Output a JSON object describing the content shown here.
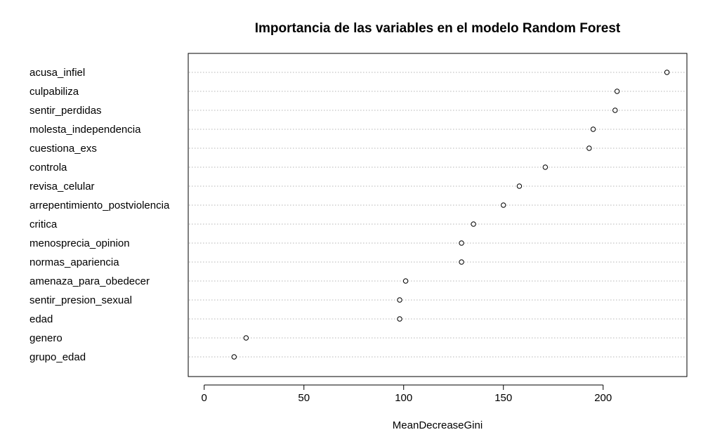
{
  "chart_data": {
    "type": "scatter",
    "title": "Importancia de las variables en el modelo Random Forest",
    "xlabel": "MeanDecreaseGini",
    "ylabel": "",
    "xlim": [
      -8,
      242
    ],
    "xticks": [
      0,
      50,
      100,
      150,
      200
    ],
    "grid": "dotted horizontal lines per variable",
    "marker": "open-circle",
    "points": [
      {
        "label": "acusa_infiel",
        "value": 232
      },
      {
        "label": "culpabiliza",
        "value": 207
      },
      {
        "label": "sentir_perdidas",
        "value": 206
      },
      {
        "label": "molesta_independencia",
        "value": 195
      },
      {
        "label": "cuestiona_exs",
        "value": 193
      },
      {
        "label": "controla",
        "value": 171
      },
      {
        "label": "revisa_celular",
        "value": 158
      },
      {
        "label": "arrepentimiento_postviolencia",
        "value": 150
      },
      {
        "label": "critica",
        "value": 135
      },
      {
        "label": "menosprecia_opinion",
        "value": 129
      },
      {
        "label": "normas_apariencia",
        "value": 129
      },
      {
        "label": "amenaza_para_obedecer",
        "value": 101
      },
      {
        "label": "sentir_presion_sexual",
        "value": 98
      },
      {
        "label": "edad",
        "value": 98
      },
      {
        "label": "genero",
        "value": 21
      },
      {
        "label": "grupo_edad",
        "value": 15
      }
    ]
  }
}
